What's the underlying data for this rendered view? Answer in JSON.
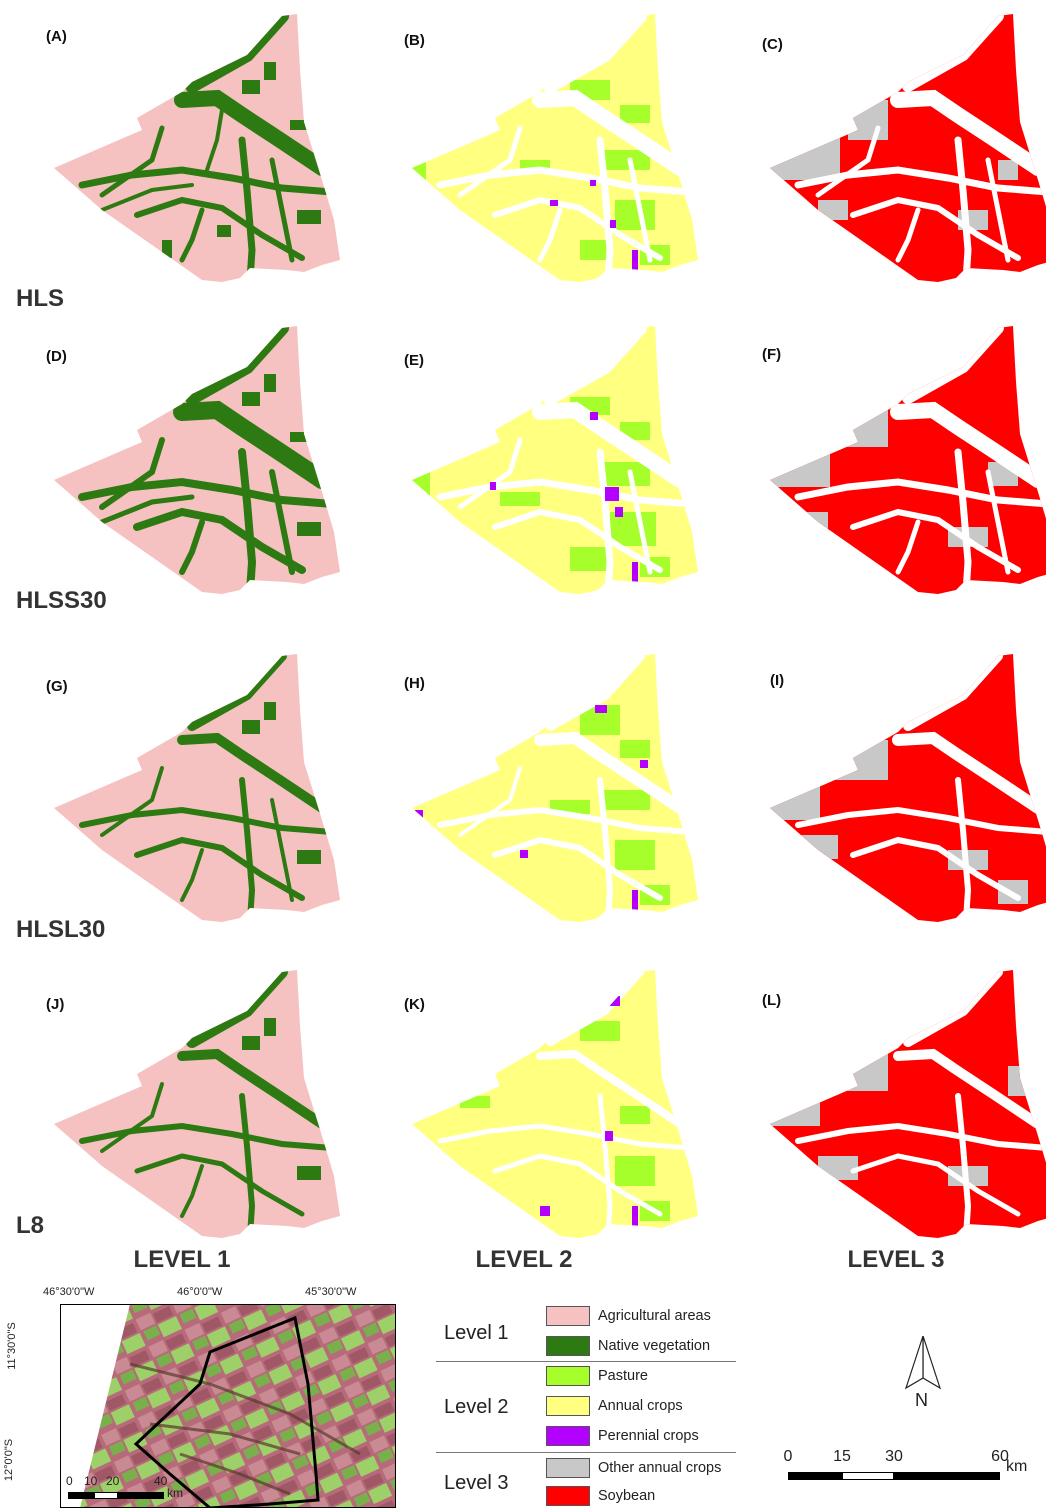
{
  "panels": [
    {
      "label": "(A)"
    },
    {
      "label": "(B)"
    },
    {
      "label": "(C)"
    },
    {
      "label": "(D)"
    },
    {
      "label": "(E)"
    },
    {
      "label": "(F)"
    },
    {
      "label": "(G)"
    },
    {
      "label": "(H)"
    },
    {
      "label": "(I)"
    },
    {
      "label": "(J)"
    },
    {
      "label": "(K)"
    },
    {
      "label": "(L)"
    }
  ],
  "rows": [
    {
      "label": "HLS"
    },
    {
      "label": "HLSS30"
    },
    {
      "label": "HLSL30"
    },
    {
      "label": "L8"
    }
  ],
  "columns": [
    {
      "label": "LEVEL 1"
    },
    {
      "label": "LEVEL 2"
    },
    {
      "label": "LEVEL 3"
    }
  ],
  "legend": {
    "level1": {
      "label": "Level 1",
      "items": [
        {
          "label": "Agricultural areas",
          "color": "#f6c1c1"
        },
        {
          "label": "Native vegetation",
          "color": "#2d7a12"
        }
      ]
    },
    "level2": {
      "label": "Level 2",
      "items": [
        {
          "label": "Pasture",
          "color": "#a6ff2a"
        },
        {
          "label": "Annual crops",
          "color": "#ffff80"
        },
        {
          "label": "Perennial crops",
          "color": "#b400ff"
        }
      ]
    },
    "level3": {
      "label": "Level 3",
      "items": [
        {
          "label": "Other annual crops",
          "color": "#c8c8c8"
        },
        {
          "label": "Soybean",
          "color": "#ff0000"
        }
      ]
    }
  },
  "north_arrow": {
    "label": "N"
  },
  "scale_bar": {
    "ticks": [
      "0",
      "15",
      "30",
      "60"
    ],
    "unit": "km"
  },
  "inset": {
    "lon_labels": [
      "46°30'0\"W",
      "46°0'0\"W",
      "45°30'0\"W"
    ],
    "lat_labels": [
      "11°30'0\"S",
      "12°0'0\"S"
    ],
    "scale_ticks": [
      "0",
      "10",
      "20",
      "40"
    ],
    "scale_unit": "km"
  },
  "colors": {
    "agricultural": "#f6c1c1",
    "native": "#2d7a12",
    "pasture": "#a6ff2a",
    "annual": "#ffff80",
    "perennial": "#b400ff",
    "other_annual": "#c8c8c8",
    "soybean": "#ff0000"
  }
}
